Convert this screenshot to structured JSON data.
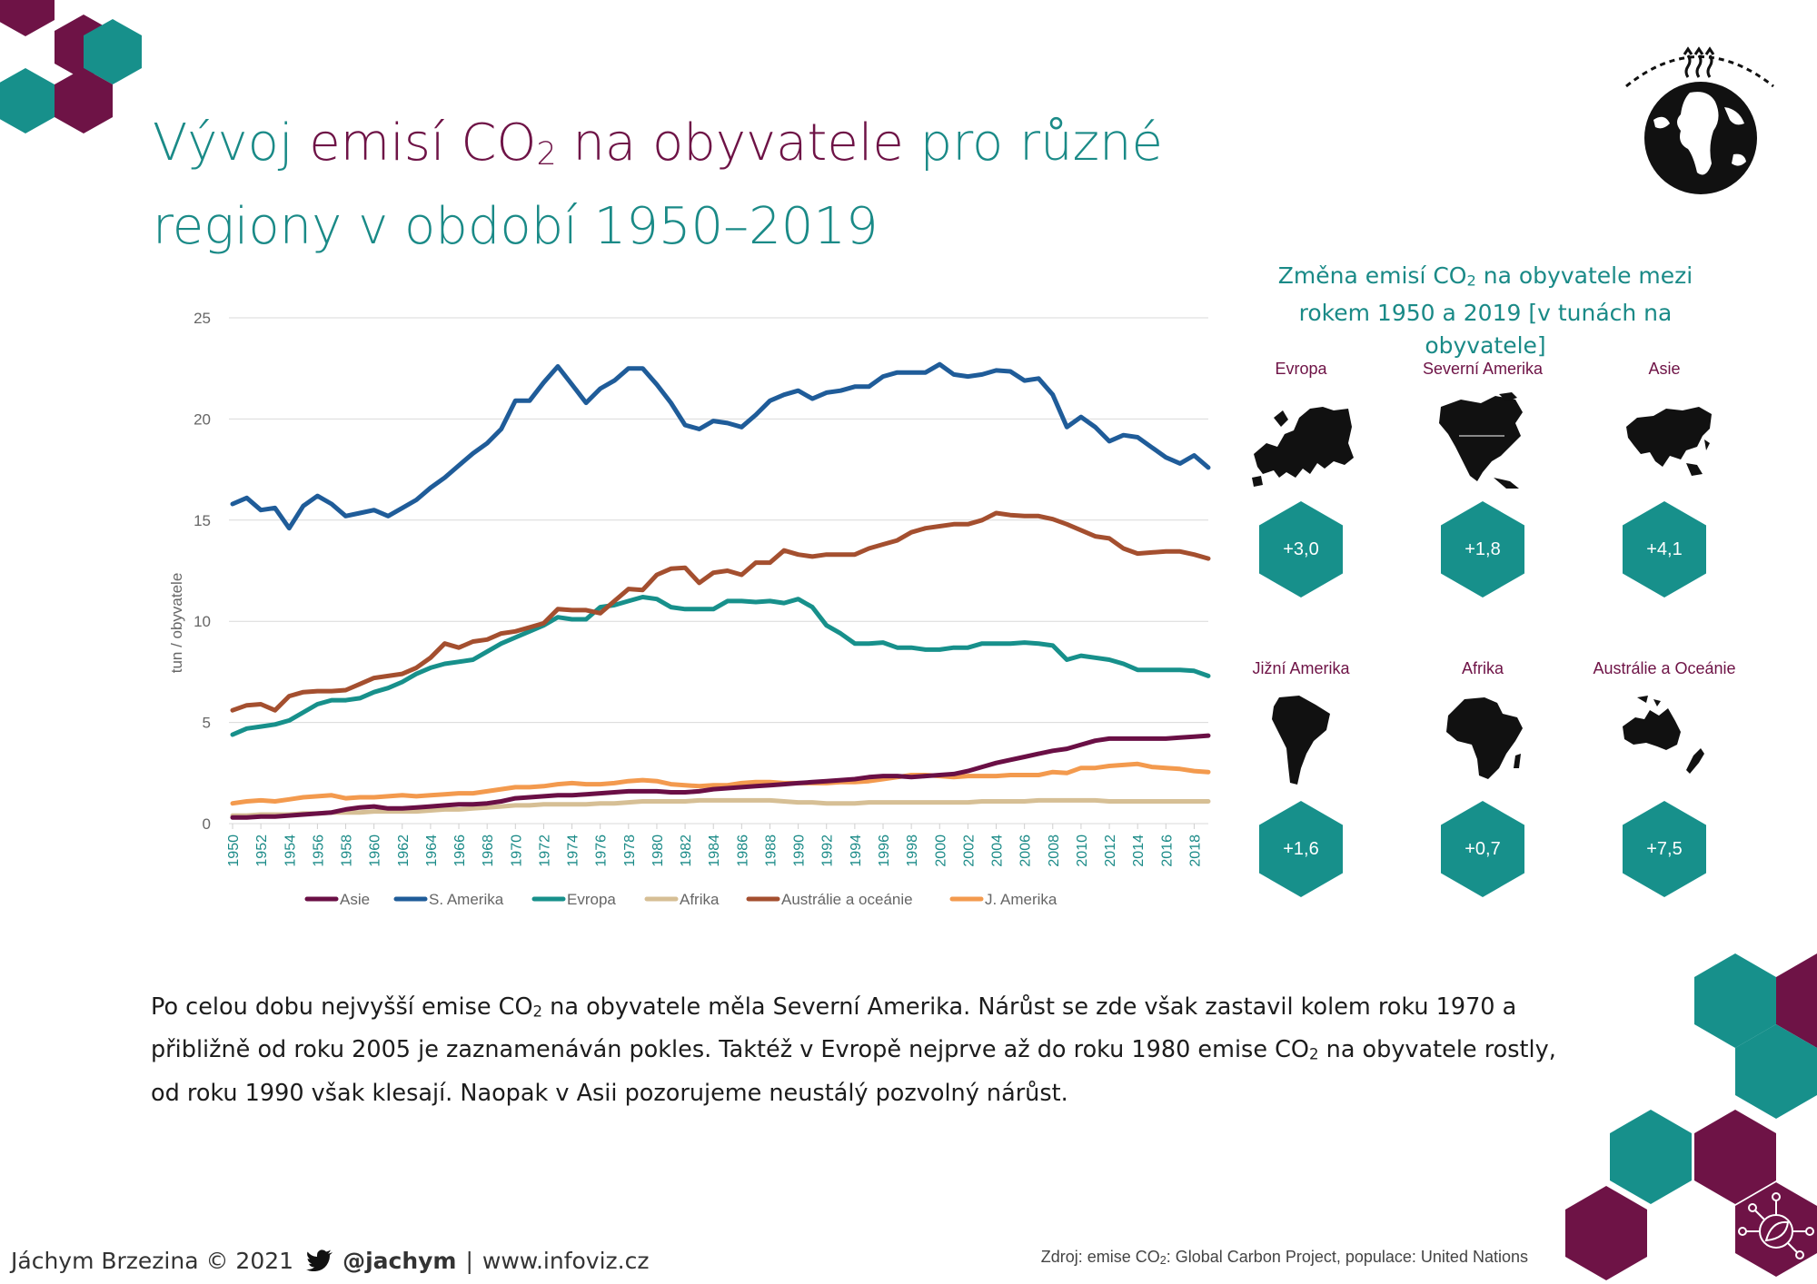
{
  "title": {
    "part1": "Vývoj ",
    "highlight_pre": "emisí CO",
    "highlight_sub": "2",
    "highlight_post": " na obyvatele",
    "part2": " pro různé",
    "line2": "regiony v období 1950–2019"
  },
  "panel": {
    "title_pre": "Změna emisí CO",
    "title_sub": "2",
    "title_post": " na obyvatele mezi rokem 1950 a 2019 [v tunách na obyvatele]",
    "regions": [
      {
        "name": "Evropa",
        "value": "+3,0",
        "map_icon": "europe-map-icon"
      },
      {
        "name": "Severní Amerika",
        "value": "+1,8",
        "map_icon": "north-america-map-icon"
      },
      {
        "name": "Asie",
        "value": "+4,1",
        "map_icon": "asia-map-icon"
      },
      {
        "name": "Jižní Amerika",
        "value": "+1,6",
        "map_icon": "south-america-map-icon"
      },
      {
        "name": "Afrika",
        "value": "+0,7",
        "map_icon": "africa-map-icon"
      },
      {
        "name": "Austrálie a Oceánie",
        "value": "+7,5",
        "map_icon": "australia-map-icon"
      }
    ]
  },
  "description": {
    "p1": "Po celou dobu nejvyšší emise CO",
    "p1_sub": "2",
    "p2": " na obyvatele měla Severní Amerika. Nárůst se zde však zastavil kolem roku 1970 a přibližně od roku 2005 je zaznamenáván pokles. Taktéž v Evropě nejprve až do roku 1980 emise CO",
    "p2_sub": "2",
    "p3": " na obyvatele rostly, od roku 1990 však klesají. Naopak v Asii pozorujeme neustálý pozvolný nárůst."
  },
  "footer": {
    "author": "Jáchym Brzezina © 2021",
    "twitter": "@jachym",
    "separator": "|",
    "website": "www.infoviz.cz",
    "source_pre": "Zdroj: emise CO",
    "source_sub": "2",
    "source_post": ": Global Carbon Project, populace: United Nations"
  },
  "icons": [
    "twitter-bird-icon",
    "globe-warming-icon",
    "eco-network-icon"
  ],
  "colors": {
    "teal": "#1a8a87",
    "plum": "#6e1346",
    "asie": "#6a0f45",
    "s_amerika": "#1f5c99",
    "evropa": "#17908b",
    "afrika": "#d6bf95",
    "australie": "#a44f2f",
    "j_amerika": "#f39a4e"
  },
  "chart_data": {
    "type": "line",
    "title": "",
    "xlabel": "",
    "ylabel": "tun / obyvatele",
    "xlim": [
      1950,
      2019
    ],
    "ylim": [
      0,
      25
    ],
    "y_ticks": [
      0,
      5,
      10,
      15,
      20,
      25
    ],
    "x_ticks": [
      1950,
      1952,
      1954,
      1956,
      1958,
      1960,
      1962,
      1964,
      1966,
      1968,
      1970,
      1972,
      1974,
      1976,
      1978,
      1980,
      1982,
      1984,
      1986,
      1988,
      1990,
      1992,
      1994,
      1996,
      1998,
      2000,
      2002,
      2004,
      2006,
      2008,
      2010,
      2012,
      2014,
      2016,
      2018
    ],
    "grid": "horizontal",
    "legend": "bottom",
    "x": [
      1950,
      1951,
      1952,
      1953,
      1954,
      1955,
      1956,
      1957,
      1958,
      1959,
      1960,
      1961,
      1962,
      1963,
      1964,
      1965,
      1966,
      1967,
      1968,
      1969,
      1970,
      1971,
      1972,
      1973,
      1974,
      1975,
      1976,
      1977,
      1978,
      1979,
      1980,
      1981,
      1982,
      1983,
      1984,
      1985,
      1986,
      1987,
      1988,
      1989,
      1990,
      1991,
      1992,
      1993,
      1994,
      1995,
      1996,
      1997,
      1998,
      1999,
      2000,
      2001,
      2002,
      2003,
      2004,
      2005,
      2006,
      2007,
      2008,
      2009,
      2010,
      2011,
      2012,
      2013,
      2014,
      2015,
      2016,
      2017,
      2018,
      2019
    ],
    "series": [
      {
        "name": "Asie",
        "color": "#6a0f45",
        "values": [
          0.3,
          0.3,
          0.35,
          0.35,
          0.4,
          0.45,
          0.5,
          0.55,
          0.7,
          0.8,
          0.85,
          0.75,
          0.75,
          0.8,
          0.85,
          0.9,
          0.95,
          0.95,
          1.0,
          1.1,
          1.25,
          1.3,
          1.35,
          1.4,
          1.4,
          1.45,
          1.5,
          1.55,
          1.6,
          1.6,
          1.6,
          1.55,
          1.55,
          1.6,
          1.7,
          1.75,
          1.8,
          1.85,
          1.9,
          1.95,
          2.0,
          2.05,
          2.1,
          2.15,
          2.2,
          2.3,
          2.35,
          2.35,
          2.3,
          2.35,
          2.4,
          2.45,
          2.6,
          2.8,
          3.0,
          3.15,
          3.3,
          3.45,
          3.6,
          3.7,
          3.9,
          4.1,
          4.2,
          4.2,
          4.2,
          4.2,
          4.2,
          4.25,
          4.3,
          4.35
        ]
      },
      {
        "name": "S. Amerika",
        "color": "#1f5c99",
        "values": [
          15.8,
          16.1,
          15.5,
          15.6,
          14.6,
          15.7,
          16.2,
          15.8,
          15.2,
          15.35,
          15.5,
          15.2,
          15.6,
          16.0,
          16.6,
          17.1,
          17.7,
          18.3,
          18.8,
          19.5,
          20.9,
          20.9,
          21.8,
          22.6,
          21.7,
          20.8,
          21.5,
          21.9,
          22.5,
          22.5,
          21.7,
          20.8,
          19.7,
          19.5,
          19.9,
          19.8,
          19.6,
          20.2,
          20.9,
          21.2,
          21.4,
          21.0,
          21.3,
          21.4,
          21.6,
          21.6,
          22.1,
          22.3,
          22.3,
          22.3,
          22.7,
          22.2,
          22.1,
          22.2,
          22.4,
          22.35,
          21.9,
          22.0,
          21.2,
          19.6,
          20.1,
          19.6,
          18.9,
          19.2,
          19.1,
          18.6,
          18.1,
          17.8,
          18.2,
          17.6
        ]
      },
      {
        "name": "Evropa",
        "color": "#17908b",
        "values": [
          4.4,
          4.7,
          4.8,
          4.9,
          5.1,
          5.5,
          5.9,
          6.1,
          6.1,
          6.2,
          6.5,
          6.7,
          7.0,
          7.4,
          7.7,
          7.9,
          8.0,
          8.1,
          8.5,
          8.9,
          9.2,
          9.5,
          9.8,
          10.2,
          10.1,
          10.1,
          10.7,
          10.8,
          11.0,
          11.2,
          11.1,
          10.7,
          10.6,
          10.6,
          10.6,
          11.0,
          11.0,
          10.95,
          11.0,
          10.9,
          11.1,
          10.7,
          9.8,
          9.4,
          8.9,
          8.9,
          8.95,
          8.7,
          8.7,
          8.6,
          8.6,
          8.7,
          8.7,
          8.9,
          8.9,
          8.9,
          8.95,
          8.9,
          8.8,
          8.1,
          8.3,
          8.2,
          8.1,
          7.9,
          7.6,
          7.6,
          7.6,
          7.6,
          7.55,
          7.3
        ]
      },
      {
        "name": "Afrika",
        "color": "#d6bf95",
        "values": [
          0.4,
          0.4,
          0.45,
          0.45,
          0.45,
          0.5,
          0.5,
          0.55,
          0.55,
          0.55,
          0.6,
          0.6,
          0.6,
          0.6,
          0.65,
          0.7,
          0.7,
          0.75,
          0.8,
          0.85,
          0.9,
          0.9,
          0.95,
          0.95,
          0.95,
          0.95,
          1.0,
          1.0,
          1.05,
          1.1,
          1.1,
          1.1,
          1.1,
          1.15,
          1.15,
          1.15,
          1.15,
          1.15,
          1.15,
          1.1,
          1.05,
          1.05,
          1.0,
          1.0,
          1.0,
          1.05,
          1.05,
          1.05,
          1.05,
          1.05,
          1.05,
          1.05,
          1.05,
          1.1,
          1.1,
          1.1,
          1.1,
          1.15,
          1.15,
          1.15,
          1.15,
          1.15,
          1.1,
          1.1,
          1.1,
          1.1,
          1.1,
          1.1,
          1.1,
          1.1
        ]
      },
      {
        "name": "Austrálie a oceánie",
        "color": "#a44f2f",
        "values": [
          5.6,
          5.85,
          5.9,
          5.6,
          6.3,
          6.5,
          6.55,
          6.55,
          6.6,
          6.9,
          7.2,
          7.3,
          7.4,
          7.7,
          8.2,
          8.9,
          8.7,
          9.0,
          9.1,
          9.4,
          9.5,
          9.7,
          9.9,
          10.6,
          10.55,
          10.55,
          10.4,
          11.0,
          11.6,
          11.55,
          12.3,
          12.6,
          12.65,
          11.9,
          12.4,
          12.5,
          12.3,
          12.9,
          12.9,
          13.5,
          13.3,
          13.2,
          13.3,
          13.3,
          13.3,
          13.6,
          13.8,
          14.0,
          14.4,
          14.6,
          14.7,
          14.8,
          14.8,
          15.0,
          15.35,
          15.25,
          15.2,
          15.2,
          15.05,
          14.8,
          14.5,
          14.2,
          14.1,
          13.6,
          13.35,
          13.4,
          13.45,
          13.45,
          13.3,
          13.1
        ]
      },
      {
        "name": "J. Amerika",
        "color": "#f39a4e",
        "values": [
          1.0,
          1.1,
          1.15,
          1.1,
          1.2,
          1.3,
          1.35,
          1.4,
          1.25,
          1.3,
          1.3,
          1.35,
          1.4,
          1.35,
          1.4,
          1.45,
          1.5,
          1.5,
          1.6,
          1.7,
          1.8,
          1.8,
          1.85,
          1.95,
          2.0,
          1.95,
          1.95,
          2.0,
          2.1,
          2.15,
          2.1,
          1.95,
          1.9,
          1.85,
          1.9,
          1.9,
          2.0,
          2.05,
          2.05,
          2.0,
          2.0,
          2.0,
          2.0,
          2.05,
          2.05,
          2.1,
          2.2,
          2.3,
          2.4,
          2.4,
          2.35,
          2.3,
          2.35,
          2.35,
          2.35,
          2.4,
          2.4,
          2.4,
          2.55,
          2.5,
          2.75,
          2.75,
          2.85,
          2.9,
          2.95,
          2.8,
          2.75,
          2.7,
          2.6,
          2.55
        ]
      }
    ]
  }
}
